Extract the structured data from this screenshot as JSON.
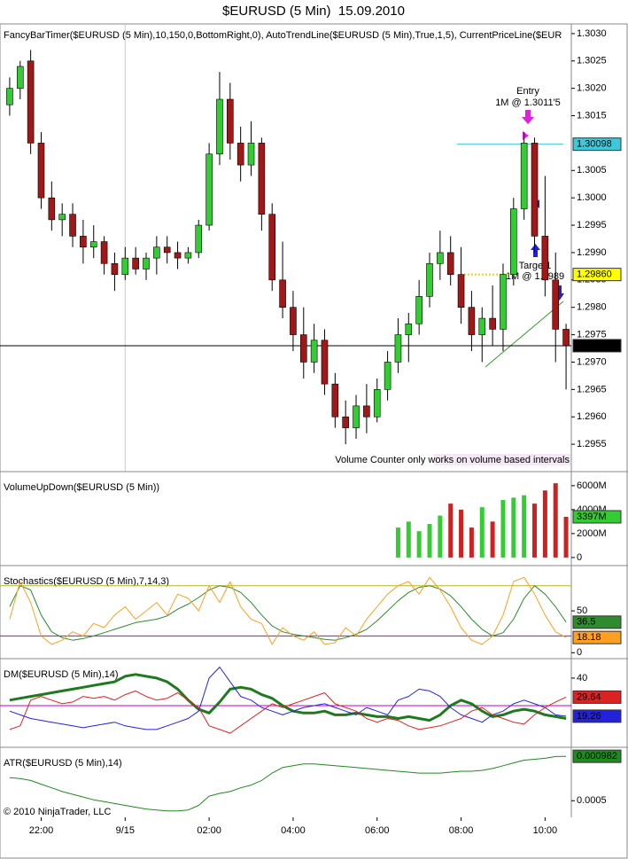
{
  "chart_data": [
    {
      "type": "candlestick",
      "title": "$EURUSD (5 Min)  15.09.2010",
      "label": "FancyBarTimer($EURUSD (5 Min),10,150,0,BottomRight,0), AutoTrendLine($EURUSD (5 Min),True,1,5), CurrentPriceLine($EUR",
      "categories": [
        null,
        null,
        null,
        "22:00",
        null,
        null,
        null,
        null,
        null,
        null,
        null,
        "9/15",
        null,
        null,
        null,
        null,
        null,
        null,
        null,
        "02:00",
        null,
        null,
        null,
        null,
        null,
        null,
        null,
        "04:00",
        null,
        null,
        null,
        null,
        null,
        null,
        null,
        "06:00",
        null,
        null,
        null,
        null,
        null,
        null,
        null,
        "08:00",
        null,
        null,
        null,
        null,
        null,
        null,
        null,
        "10:00",
        null,
        null
      ],
      "open": [
        1.3017,
        1.302,
        1.3025,
        1.301,
        1.3,
        1.2996,
        1.2997,
        1.2993,
        1.2991,
        1.2992,
        1.2988,
        1.2986,
        1.2989,
        1.2987,
        1.2989,
        1.2991,
        1.299,
        1.2989,
        1.299,
        1.2995,
        1.3008,
        1.3018,
        1.301,
        1.3006,
        1.301,
        1.2997,
        1.2985,
        1.298,
        1.2975,
        1.297,
        1.2974,
        1.2966,
        1.296,
        1.2958,
        1.2962,
        1.296,
        1.2965,
        1.297,
        1.2975,
        1.2977,
        1.2982,
        1.2988,
        1.299,
        1.2986,
        1.298,
        1.2975,
        1.2978,
        1.2976,
        1.2986,
        1.2998,
        1.301,
        1.2993,
        1.2985,
        1.2976
      ],
      "high": [
        1.3022,
        1.3025,
        1.3027,
        1.3012,
        1.3003,
        1.2999,
        1.2999,
        1.2996,
        1.2995,
        1.2993,
        1.299,
        1.2991,
        1.2991,
        1.299,
        1.2993,
        1.2993,
        1.2992,
        1.2991,
        1.2996,
        1.301,
        1.3023,
        1.3021,
        1.3013,
        1.3014,
        1.3011,
        1.2999,
        1.2992,
        1.2983,
        1.298,
        1.2977,
        1.2976,
        1.2968,
        1.2963,
        1.2964,
        1.2966,
        1.2967,
        1.2972,
        1.2978,
        1.2979,
        1.2985,
        1.299,
        1.2994,
        1.2993,
        1.2991,
        1.2983,
        1.298,
        1.2984,
        1.2988,
        1.3,
        1.3012,
        1.3011,
        1.3004,
        1.299,
        1.2977
      ],
      "low": [
        1.3015,
        1.3018,
        1.3008,
        1.2998,
        1.2994,
        1.2993,
        1.2991,
        1.2988,
        1.2989,
        1.2986,
        1.2983,
        1.2985,
        1.2986,
        1.2985,
        1.2986,
        1.2988,
        1.2987,
        1.2988,
        1.2989,
        1.2994,
        1.3006,
        1.3007,
        1.3003,
        1.3004,
        1.2994,
        1.2983,
        1.2978,
        1.2972,
        1.2967,
        1.2968,
        1.2964,
        1.2958,
        1.2955,
        1.2956,
        1.2957,
        1.2959,
        1.2963,
        1.2968,
        1.297,
        1.2975,
        1.298,
        1.2985,
        1.2984,
        1.2977,
        1.2972,
        1.297,
        1.2973,
        1.2972,
        1.2984,
        1.2996,
        1.299,
        1.2982,
        1.297,
        1.2965
      ],
      "close": [
        1.302,
        1.3024,
        1.301,
        1.3,
        1.2996,
        1.2997,
        1.2993,
        1.2991,
        1.2992,
        1.2988,
        1.2986,
        1.2989,
        1.2987,
        1.2989,
        1.2991,
        1.299,
        1.2989,
        1.299,
        1.2995,
        1.3008,
        1.3018,
        1.301,
        1.3006,
        1.301,
        1.2997,
        1.2985,
        1.298,
        1.2975,
        1.297,
        1.2974,
        1.2966,
        1.296,
        1.2958,
        1.2962,
        1.296,
        1.2965,
        1.297,
        1.2975,
        1.2977,
        1.2982,
        1.2988,
        1.299,
        1.2986,
        1.298,
        1.2975,
        1.2978,
        1.2976,
        1.2986,
        1.2998,
        1.301,
        1.2993,
        1.2985,
        1.2976,
        1.2973
      ],
      "up_color": "#33cc33",
      "down_color": "#a01818",
      "ylim": [
        1.295,
        1.30316
      ],
      "yticks": [
        {
          "value": 1.303,
          "label": "1.3030"
        },
        1.3025,
        {
          "value": 1.302,
          "label": "1.3020"
        },
        1.3015,
        1.3005,
        {
          "value": 1.3,
          "label": "1.3000"
        },
        1.2995,
        {
          "value": 1.299,
          "label": "1.2990"
        },
        1.2985,
        {
          "value": 1.298,
          "label": "1.2980"
        },
        1.2975,
        {
          "value": 1.297,
          "label": "1.2970"
        },
        1.2965,
        {
          "value": 1.296,
          "label": "1.2960"
        },
        1.2955
      ],
      "price_lines": [
        {
          "value": 1.2973,
          "color": "#000000"
        },
        {
          "value": 1.30098,
          "color": "#3ec8d8"
        },
        {
          "value": 1.2986,
          "label": "1.29860",
          "color": "#ffff00"
        }
      ],
      "annotations": [
        "Entry",
        "1M @ 1.3011'5",
        "Target1",
        "1M @ 1.2989"
      ],
      "note": "Volume Counter only works on volume based intervals"
    },
    {
      "type": "bar",
      "label": "VolumeUpDown($EURUSD (5 Min))",
      "values": [
        null,
        null,
        null,
        null,
        null,
        null,
        null,
        null,
        null,
        null,
        null,
        null,
        null,
        null,
        null,
        null,
        null,
        null,
        null,
        null,
        null,
        null,
        null,
        null,
        null,
        null,
        null,
        null,
        null,
        null,
        null,
        null,
        null,
        null,
        null,
        null,
        null,
        2500,
        3000,
        2200,
        2800,
        3500,
        4500,
        4000,
        2500,
        4200,
        3000,
        4800,
        5000,
        5200,
        4500,
        5600,
        6200,
        3397
      ],
      "colors": [
        null,
        null,
        null,
        null,
        null,
        null,
        null,
        null,
        null,
        null,
        null,
        null,
        null,
        null,
        null,
        null,
        null,
        null,
        null,
        null,
        null,
        null,
        null,
        null,
        null,
        null,
        null,
        null,
        null,
        null,
        null,
        null,
        null,
        null,
        null,
        null,
        null,
        "#33cc33",
        "#33cc33",
        "#33cc33",
        "#33cc33",
        "#33cc33",
        "#cc2222",
        "#cc2222",
        "#cc2222",
        "#33cc33",
        "#cc2222",
        "#33cc33",
        "#33cc33",
        "#33cc33",
        "#cc2222",
        "#cc2222",
        "#cc2222",
        "#cc2222"
      ],
      "current_label": "3397M",
      "current_color": "#33cc33",
      "ylim": [
        -600,
        7100
      ],
      "yticks": [
        {
          "value": 6000,
          "label": "6000M"
        },
        {
          "value": 4000,
          "label": "4000M"
        },
        {
          "value": 2000,
          "label": "2000M"
        },
        0
      ]
    },
    {
      "type": "line",
      "label": "Stochastics($EURUSD (5 Min),7,14,3)",
      "series": [
        {
          "color": "#2e8b2e",
          "width": 1,
          "values": [
            55,
            80,
            75,
            45,
            25,
            18,
            15,
            17,
            20,
            24,
            28,
            32,
            36,
            38,
            40,
            44,
            52,
            58,
            66,
            75,
            80,
            78,
            72,
            60,
            45,
            32,
            25,
            22,
            20,
            18,
            16,
            15,
            18,
            22,
            28,
            38,
            50,
            62,
            72,
            78,
            80,
            76,
            68,
            55,
            40,
            28,
            20,
            24,
            40,
            65,
            80,
            70,
            55,
            36.5
          ]
        },
        {
          "color": "#ffa020",
          "width": 1,
          "values": [
            40,
            85,
            60,
            20,
            10,
            15,
            25,
            20,
            35,
            30,
            45,
            55,
            40,
            50,
            60,
            45,
            70,
            65,
            50,
            80,
            60,
            85,
            55,
            40,
            35,
            10,
            30,
            20,
            15,
            25,
            10,
            12,
            30,
            20,
            40,
            55,
            70,
            80,
            85,
            70,
            90,
            75,
            55,
            30,
            15,
            10,
            20,
            45,
            85,
            90,
            70,
            45,
            25,
            18.18
          ]
        }
      ],
      "levels": [
        {
          "value": 80,
          "color": "#b5b520"
        },
        {
          "value": 20,
          "color": "#c000c0"
        }
      ],
      "ylim": [
        -6,
        103
      ],
      "yticks": [
        50,
        0
      ]
    },
    {
      "type": "line",
      "label": "DM($EURUSD (5 Min),14)",
      "series": [
        {
          "color": "#1f7a1f",
          "width": 3,
          "values": [
            28,
            29,
            30,
            31,
            32,
            33,
            34,
            35,
            36,
            37,
            38,
            41,
            42,
            41,
            40,
            38,
            34,
            28,
            23,
            21,
            27,
            34,
            35,
            34,
            31,
            29,
            25,
            22,
            21,
            21,
            22,
            20,
            20,
            21,
            20,
            19,
            19,
            18,
            19,
            18,
            17,
            20,
            25,
            28,
            26,
            22,
            19,
            20,
            22,
            23,
            22,
            20,
            19,
            18
          ]
        },
        {
          "color": "#2222dd",
          "width": 1,
          "values": [
            22,
            20,
            18,
            17,
            16,
            15,
            14,
            13,
            14,
            15,
            16,
            14,
            13,
            12,
            12,
            14,
            16,
            18,
            22,
            40,
            46,
            38,
            30,
            28,
            24,
            22,
            20,
            22,
            24,
            25,
            26,
            24,
            22,
            20,
            24,
            22,
            20,
            28,
            30,
            34,
            33,
            30,
            24,
            20,
            18,
            16,
            20,
            22,
            26,
            28,
            26,
            24,
            20,
            19.26
          ]
        },
        {
          "color": "#dd2222",
          "width": 1,
          "values": [
            12,
            14,
            28,
            30,
            28,
            26,
            27,
            30,
            29,
            30,
            28,
            31,
            33,
            30,
            28,
            29,
            32,
            28,
            24,
            14,
            12,
            10,
            14,
            18,
            22,
            26,
            24,
            26,
            28,
            30,
            32,
            26,
            24,
            22,
            18,
            16,
            18,
            17,
            14,
            12,
            13,
            14,
            16,
            18,
            22,
            24,
            20,
            18,
            16,
            15,
            20,
            24,
            27,
            29.64
          ]
        }
      ],
      "tagged": [
        2,
        1
      ],
      "levels": [
        {
          "value": 25,
          "color": "#c000c0"
        }
      ],
      "ylim": [
        2.8,
        50.1
      ],
      "yticks": [
        40
      ]
    },
    {
      "type": "line",
      "label": "ATR($EURUSD (5 Min),14)",
      "series": [
        {
          "color": "#1f8a1f",
          "width": 1,
          "values": [
            0.00075,
            0.00074,
            0.00072,
            0.00068,
            0.00064,
            0.0006,
            0.00057,
            0.00054,
            0.00051,
            0.00049,
            0.00047,
            0.00045,
            0.00043,
            0.00041,
            0.0004,
            0.00039,
            0.00039,
            0.0004,
            0.00045,
            0.00055,
            0.00058,
            0.0006,
            0.00064,
            0.00067,
            0.00072,
            0.0008,
            0.00086,
            0.00088,
            0.0009,
            0.0009,
            0.00089,
            0.00088,
            0.00087,
            0.00086,
            0.00085,
            0.00084,
            0.00083,
            0.00082,
            0.00081,
            0.0008,
            0.0008,
            0.0008,
            0.00081,
            0.00082,
            0.00082,
            0.00083,
            0.00085,
            0.00088,
            0.00091,
            0.00094,
            0.00095,
            0.00096,
            0.00098,
            0.000982
          ]
        }
      ],
      "ylim": [
        0.00032,
        0.00107
      ],
      "yticks": [
        0.0005
      ],
      "copyright": "© 2010 NinjaTrader, LLC"
    }
  ]
}
